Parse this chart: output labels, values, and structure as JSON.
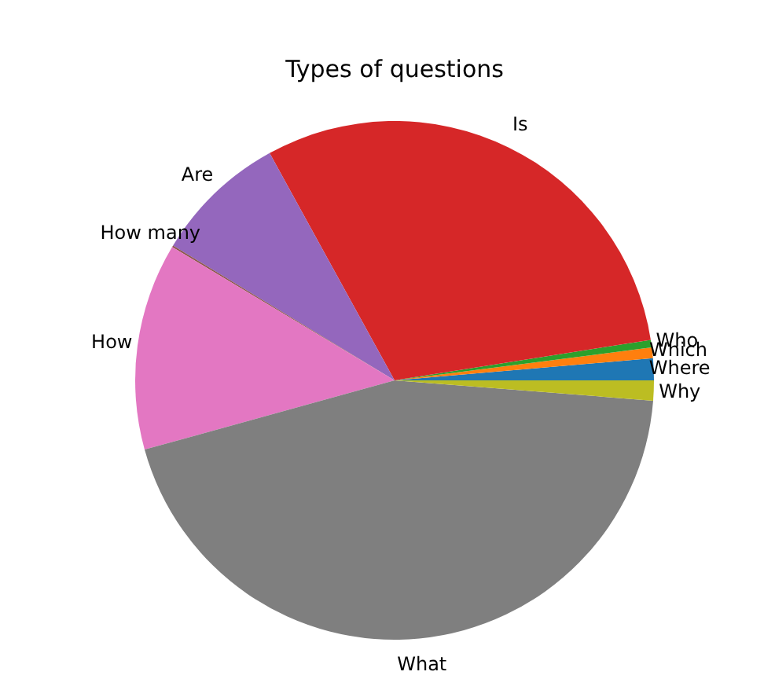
{
  "chart_data": {
    "type": "pie",
    "title": "Types of questions",
    "categories": [
      "Where",
      "Which",
      "Who",
      "Is",
      "Are",
      "How many",
      "How",
      "What",
      "Why"
    ],
    "values": [
      1.36,
      0.67,
      0.47,
      30.5,
      8.3,
      0.1,
      12.9,
      44.45,
      1.25
    ],
    "colors": [
      "#1f77b4",
      "#ff7f0e",
      "#2ca02c",
      "#d62728",
      "#9467bd",
      "#8c564b",
      "#e377c2",
      "#7f7f7f",
      "#bcbd22"
    ]
  }
}
